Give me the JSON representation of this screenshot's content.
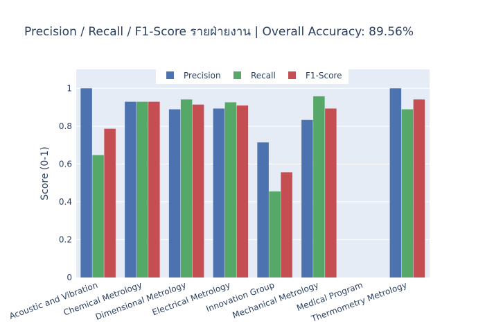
{
  "chart_data": {
    "type": "bar",
    "title": "Precision / Recall / F1-Score รายฝ่ายงาน  |  Overall Accuracy: 89.56%",
    "xlabel": "",
    "ylabel": "Score (0-1)",
    "ylim": [
      0,
      1.1
    ],
    "yticks": [
      "0",
      "0.2",
      "0.4",
      "0.6",
      "0.8",
      "1"
    ],
    "grid": true,
    "legend_position": "top",
    "categories": [
      "Acoustic and Vibration",
      "Chemical Metrology",
      "Dimensional Metrology",
      "Electrical Metrology",
      "Innovation Group",
      "Mechanical Metrology",
      "Medical Program",
      "Thermometry Metrology"
    ],
    "series": [
      {
        "name": "Precision",
        "color": "#4c72b0",
        "values": [
          1.0,
          0.929,
          0.889,
          0.893,
          0.714,
          0.833,
          0.0,
          1.0
        ]
      },
      {
        "name": "Recall",
        "color": "#55a868",
        "values": [
          0.647,
          0.929,
          0.941,
          0.926,
          0.455,
          0.958,
          0.0,
          0.889
        ]
      },
      {
        "name": "F1-Score",
        "color": "#c44e52",
        "values": [
          0.786,
          0.929,
          0.914,
          0.909,
          0.556,
          0.893,
          0.0,
          0.941
        ]
      }
    ]
  }
}
